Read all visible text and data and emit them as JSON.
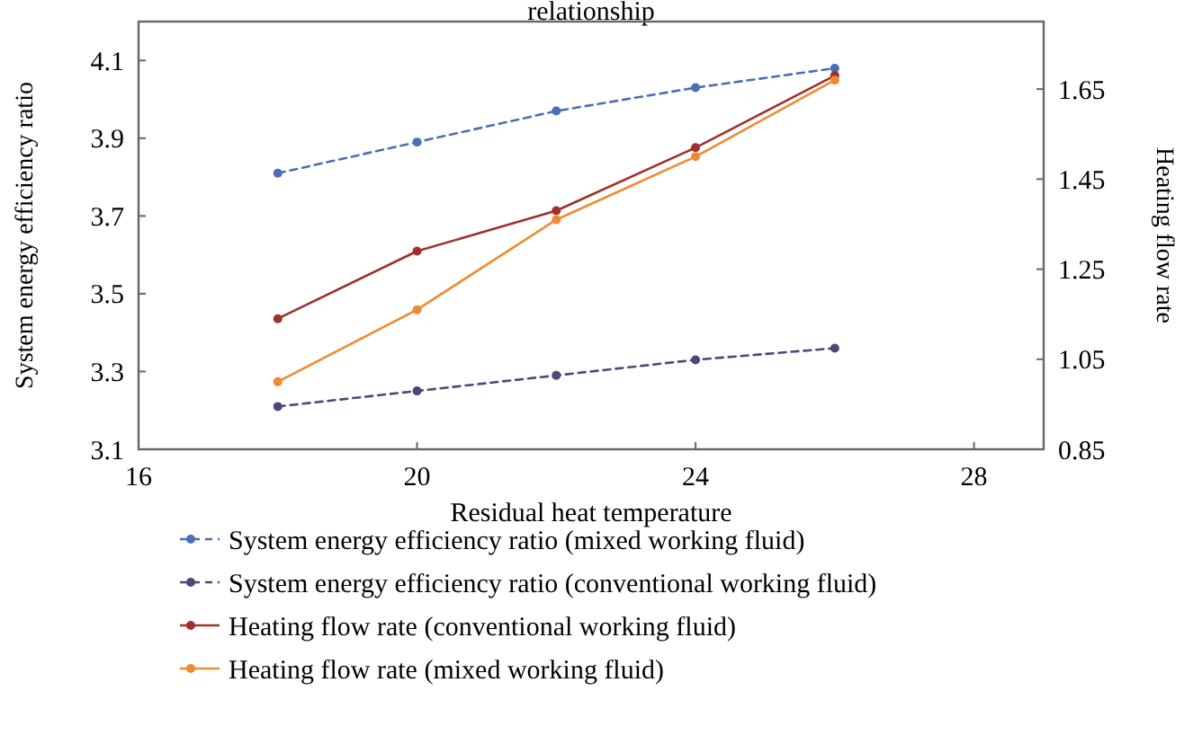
{
  "chart_data": {
    "type": "line",
    "title": "relationship",
    "xlabel": "Residual heat temperature",
    "ylabel": "System energy efficiency ratio",
    "y2label": "Heating flow rate",
    "x": [
      18,
      20,
      22,
      24,
      26
    ],
    "xlim": [
      16,
      29
    ],
    "xticks": [
      16,
      20,
      24,
      28
    ],
    "ylim": [
      3.1,
      4.2
    ],
    "yticks": [
      3.1,
      3.3,
      3.5,
      3.7,
      3.9,
      4.1
    ],
    "y2lim": [
      0.85,
      1.8
    ],
    "y2ticks": [
      0.85,
      1.05,
      1.25,
      1.45,
      1.65
    ],
    "marker": "circle",
    "legend": "bottom",
    "grid": false,
    "series": [
      {
        "name": "System energy efficiency ratio (mixed working fluid)",
        "color": "#4a6fb5",
        "line_style": "dashed",
        "values": [
          3.81,
          3.89,
          3.97,
          4.03,
          4.08
        ]
      },
      {
        "name": "System energy efficiency ratio (conventional working fluid)",
        "color": "#4a4a7a",
        "line_style": "dashed",
        "values": [
          3.21,
          3.25,
          3.29,
          3.33,
          3.36
        ]
      },
      {
        "name": "Heating flow rate (conventional working fluid)",
        "color": "#a0302a",
        "line_style": "solid",
        "axis": "y2",
        "values": [
          1.14,
          1.29,
          1.38,
          1.52,
          1.68
        ]
      },
      {
        "name": "Heating flow rate (mixed working fluid)",
        "color": "#f08a30",
        "line_style": "solid",
        "axis": "y2",
        "values": [
          1.0,
          1.16,
          1.36,
          1.5,
          1.67
        ]
      }
    ]
  }
}
